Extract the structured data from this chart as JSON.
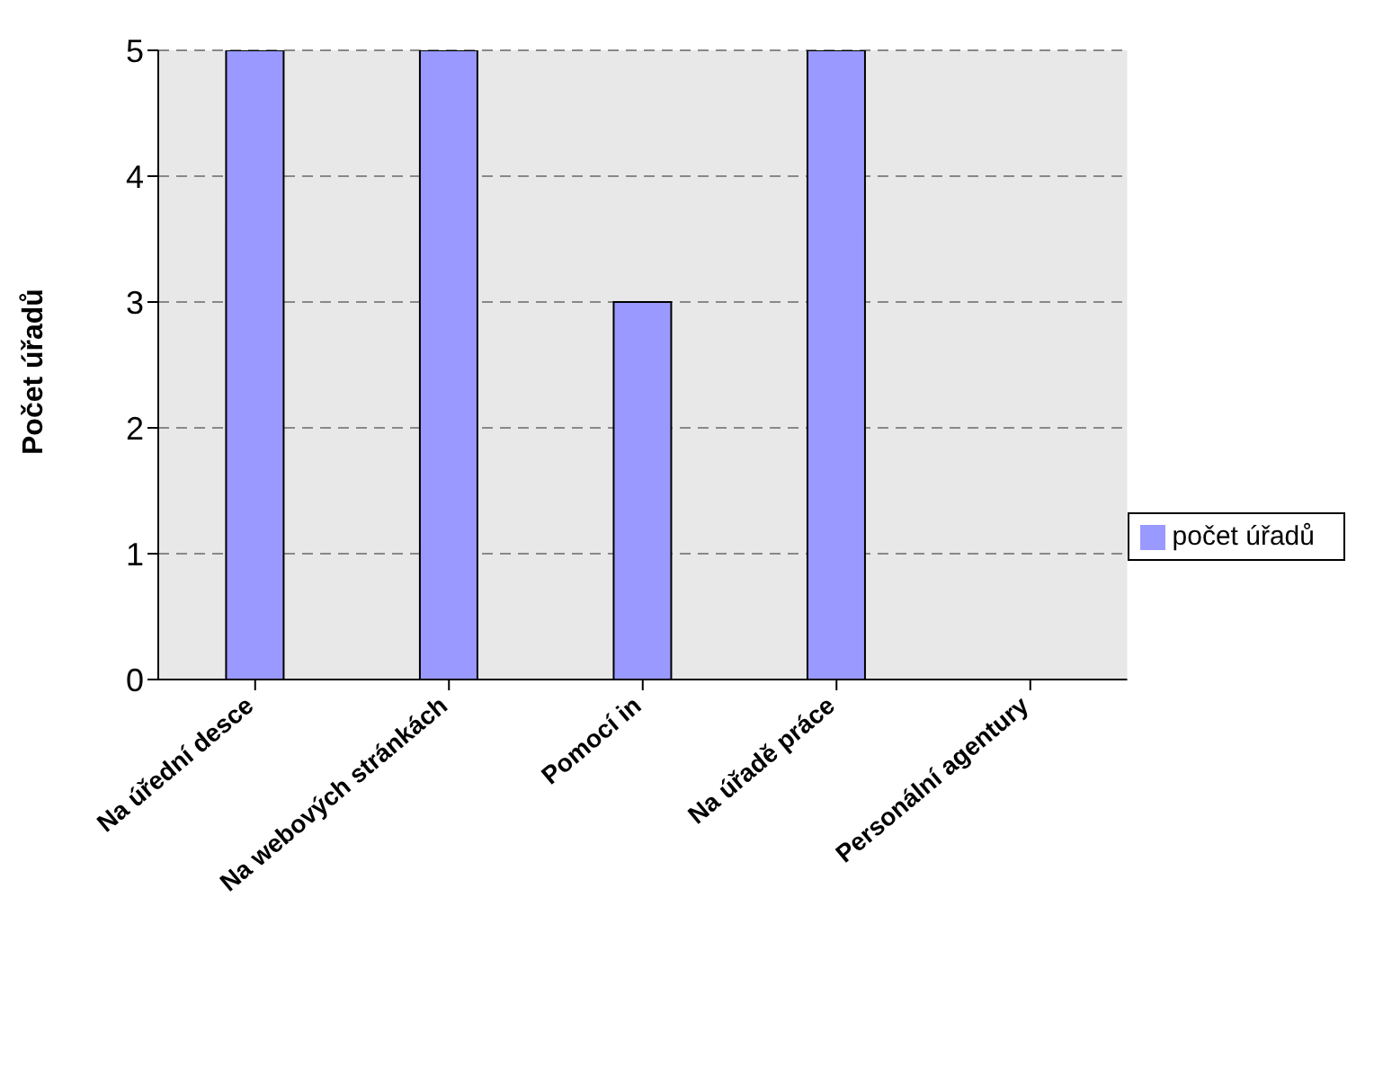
{
  "chart_data": {
    "type": "bar",
    "ylabel": "Počet úřadů",
    "categories": [
      "Na úřední desce",
      "Na webových stránkách",
      "Pomocí in",
      "Na úřadě práce",
      "Personální agentury"
    ],
    "series": [
      {
        "name": "počet úřadů",
        "color": "#9999ff",
        "values": [
          5,
          5,
          3,
          5,
          0
        ]
      }
    ],
    "ylim": [
      0,
      5
    ],
    "yticks": [
      0,
      1,
      2,
      3,
      4,
      5
    ],
    "grid": "y",
    "legend": "right"
  }
}
